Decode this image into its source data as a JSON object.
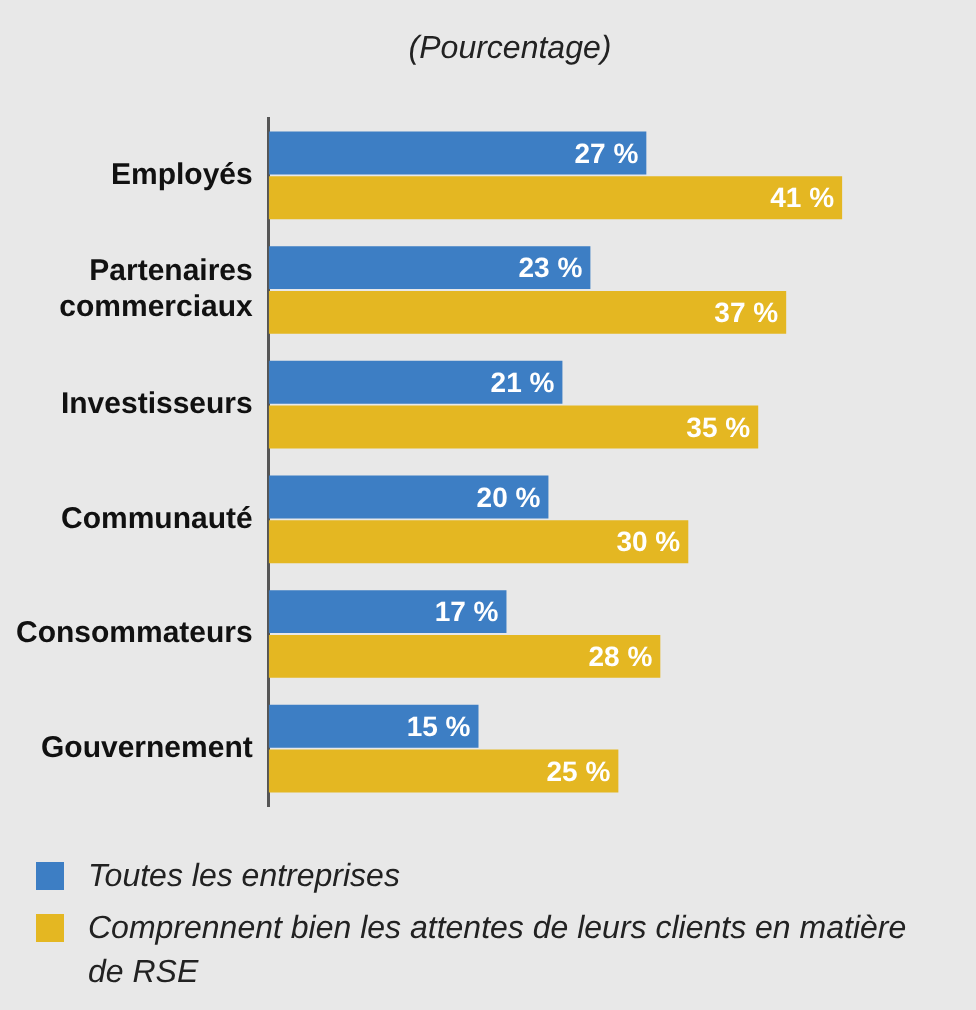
{
  "chart_data": {
    "type": "bar",
    "orientation": "horizontal",
    "subtitle": "(Pourcentage)",
    "categories": [
      "Employés",
      "Partenaires commerciaux",
      "Investisseurs",
      "Communauté",
      "Consommateurs",
      "Gouvernement"
    ],
    "series": [
      {
        "name": "Toutes les entreprises",
        "color": "#3d7ec4",
        "values": [
          27,
          23,
          21,
          20,
          17,
          15
        ],
        "value_labels": [
          "27 %",
          "23 %",
          "21 %",
          "20 %",
          "17 %",
          "15 %"
        ]
      },
      {
        "name": "Comprennent bien les attentes de leurs clients en matière de RSE",
        "color": "#e4b722",
        "values": [
          41,
          37,
          35,
          30,
          28,
          25
        ],
        "value_labels": [
          "41 %",
          "37 %",
          "35 %",
          "30 %",
          "28 %",
          "25 %"
        ]
      }
    ],
    "legend": "bottom",
    "tick_labels": "y"
  }
}
